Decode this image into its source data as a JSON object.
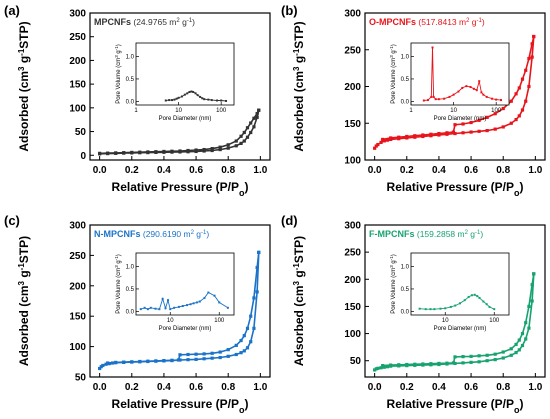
{
  "chart_data": [
    {
      "panel": "(a)",
      "type": "line",
      "sample": "MPCNFs",
      "surface_area": "(24.9765 m",
      "surface_unit_exp": "2",
      "surface_unit_tail": " g",
      "surface_unit_exp2": "-1",
      "surface_close": ")",
      "color": "#333333",
      "xlabel": "Relative Pressure (P/P",
      "xlabel_sub": "o",
      "xlabel_close": ")",
      "ylabel": "Adsorbed (cm",
      "ylabel_sup": "3",
      "ylabel_mid": " g",
      "ylabel_sup2": "-1",
      "ylabel_tail": "STP)",
      "xlim": [
        -0.06,
        1.06
      ],
      "ylim": [
        -10,
        300
      ],
      "xticks": [
        "0.0",
        "0.2",
        "0.4",
        "0.6",
        "0.8",
        "1.0"
      ],
      "yticks": [
        "0",
        "50",
        "100",
        "150",
        "200",
        "250",
        "300"
      ],
      "series": [
        {
          "x": [
            0.0,
            0.05,
            0.1,
            0.15,
            0.2,
            0.25,
            0.3,
            0.35,
            0.4,
            0.45,
            0.5,
            0.55,
            0.6,
            0.65,
            0.7,
            0.75,
            0.8,
            0.85,
            0.88,
            0.9,
            0.92,
            0.94,
            0.96,
            0.98,
            0.99
          ],
          "y": [
            3,
            3.5,
            4,
            4.5,
            5,
            5.3,
            5.6,
            6,
            6.3,
            6.6,
            7,
            7.4,
            8,
            9,
            10,
            12,
            15,
            20,
            25,
            30,
            38,
            48,
            60,
            80,
            95
          ]
        },
        {
          "x": [
            0.99,
            0.98,
            0.96,
            0.94,
            0.92,
            0.9,
            0.88,
            0.85,
            0.8,
            0.75,
            0.7,
            0.65,
            0.6,
            0.55,
            0.5,
            0.45,
            0.4,
            0.35,
            0.3,
            0.25,
            0.2,
            0.15,
            0.1,
            0.05,
            0.0
          ],
          "y": [
            95,
            88,
            78,
            68,
            58,
            48,
            40,
            30,
            22,
            17,
            14,
            12,
            11,
            10,
            9,
            8.5,
            8,
            7.5,
            7,
            6.5,
            6,
            5.5,
            5,
            4.5,
            4
          ]
        }
      ],
      "inset": {
        "xlabel": "Pore Diameter (nm)",
        "ylabel": "Pore Volume (cm",
        "ylabel_sup": "3",
        "ylabel_mid": " g",
        "ylabel_sup2": "-1",
        "ylabel_tail": ")",
        "xticks": [
          "1",
          "10",
          "100"
        ],
        "yticks": [
          "0.0",
          "0.5",
          "1.0"
        ],
        "xlog": true,
        "xlim": [
          1,
          200
        ],
        "ylim": [
          -0.08,
          1.3
        ],
        "x": [
          5,
          6,
          7,
          8,
          9,
          10,
          12,
          14,
          16,
          18,
          20,
          22,
          25,
          28,
          32,
          36,
          40,
          50,
          60,
          80,
          100,
          130
        ],
        "y": [
          0.02,
          0.03,
          0.03,
          0.04,
          0.06,
          0.08,
          0.11,
          0.15,
          0.18,
          0.21,
          0.22,
          0.21,
          0.18,
          0.14,
          0.1,
          0.07,
          0.05,
          0.04,
          0.03,
          0.02,
          0.02,
          0.01
        ]
      }
    },
    {
      "panel": "(b)",
      "type": "line",
      "sample": "O-MPCNFs",
      "surface_area": "(517.8413 m",
      "surface_unit_exp": "2",
      "surface_unit_tail": "g",
      "surface_unit_exp2": "-1",
      "surface_close": ")",
      "color": "#e8141b",
      "xlabel": "Relative Pressure (P/P",
      "xlabel_sub": "o",
      "xlabel_close": ")",
      "ylabel": "Adsorbed (cm",
      "ylabel_sup": "3",
      "ylabel_mid": " g",
      "ylabel_sup2": "-1",
      "ylabel_tail": "STP)",
      "xlim": [
        -0.06,
        1.06
      ],
      "ylim": [
        100,
        300
      ],
      "xticks": [
        "0.0",
        "0.2",
        "0.4",
        "0.6",
        "0.8",
        "1.0"
      ],
      "yticks": [
        "100",
        "150",
        "200",
        "250",
        "300"
      ],
      "series": [
        {
          "x": [
            0.0,
            0.01,
            0.02,
            0.04,
            0.06,
            0.08,
            0.1,
            0.15,
            0.2,
            0.25,
            0.3,
            0.35,
            0.4,
            0.45,
            0.5,
            0.55,
            0.6,
            0.65,
            0.7,
            0.75,
            0.8,
            0.85,
            0.88,
            0.9,
            0.92,
            0.94,
            0.96,
            0.98,
            0.99
          ],
          "y": [
            116,
            119,
            121,
            124,
            126,
            127,
            128,
            129,
            130,
            131,
            132,
            133,
            134,
            135,
            136,
            137,
            138,
            139,
            140,
            142,
            145,
            150,
            155,
            160,
            168,
            180,
            200,
            240,
            268
          ]
        },
        {
          "x": [
            0.99,
            0.98,
            0.96,
            0.94,
            0.92,
            0.9,
            0.88,
            0.85,
            0.8,
            0.75,
            0.7,
            0.65,
            0.6,
            0.55,
            0.5,
            0.49,
            0.45,
            0.4,
            0.35,
            0.3,
            0.25,
            0.2,
            0.15,
            0.1,
            0.05
          ],
          "y": [
            268,
            258,
            238,
            222,
            210,
            198,
            190,
            180,
            170,
            163,
            158,
            154,
            151,
            149,
            148,
            138,
            137,
            136,
            135,
            134,
            133,
            132,
            131,
            130,
            128
          ]
        }
      ],
      "inset": {
        "xlabel": "Pore Diameter (nm)",
        "ylabel": "Pore Volume (cm",
        "ylabel_sup": "3",
        "ylabel_mid": " g",
        "ylabel_sup2": "-1",
        "ylabel_tail": ")",
        "xticks": [
          "1",
          "10",
          "100"
        ],
        "yticks": [
          "0.0",
          "0.5",
          "1.0"
        ],
        "xlog": true,
        "xlim": [
          1,
          200
        ],
        "ylim": [
          -0.08,
          1.3
        ],
        "x": [
          2,
          2.5,
          3,
          3.2,
          3.4,
          3.8,
          4.5,
          6,
          8,
          10,
          13,
          16,
          20,
          25,
          30,
          35,
          40,
          45,
          50,
          60,
          80,
          100,
          130
        ],
        "y": [
          0.02,
          0.03,
          0.1,
          1.2,
          0.1,
          0.05,
          0.05,
          0.06,
          0.1,
          0.15,
          0.22,
          0.3,
          0.34,
          0.32,
          0.28,
          0.25,
          0.45,
          0.2,
          0.15,
          0.1,
          0.06,
          0.04,
          0.03
        ]
      }
    },
    {
      "panel": "(c)",
      "type": "line",
      "sample": "N-MPCNFs",
      "surface_area": "(290.6190 m",
      "surface_unit_exp": "2",
      "surface_unit_tail": " g",
      "surface_unit_exp2": "-1",
      "surface_close": ")",
      "color": "#1a73c8",
      "xlabel": "Relative Pressure (P/P",
      "xlabel_sub": "o",
      "xlabel_close": ")",
      "ylabel": "Adsorbed (cm",
      "ylabel_sup": "3",
      "ylabel_mid": " g",
      "ylabel_sup2": "-1",
      "ylabel_tail": "STP)",
      "xlim": [
        -0.06,
        1.06
      ],
      "ylim": [
        50,
        300
      ],
      "xticks": [
        "0.0",
        "0.2",
        "0.4",
        "0.6",
        "0.8",
        "1.0"
      ],
      "yticks": [
        "50",
        "100",
        "150",
        "200",
        "250",
        "300"
      ],
      "series": [
        {
          "x": [
            0.0,
            0.01,
            0.02,
            0.04,
            0.06,
            0.08,
            0.1,
            0.15,
            0.2,
            0.25,
            0.3,
            0.35,
            0.4,
            0.45,
            0.5,
            0.55,
            0.6,
            0.65,
            0.7,
            0.75,
            0.8,
            0.85,
            0.88,
            0.9,
            0.92,
            0.94,
            0.96,
            0.98,
            0.99
          ],
          "y": [
            64,
            67,
            69,
            71,
            72,
            73,
            73.5,
            74,
            74.5,
            75,
            75.5,
            76,
            76.5,
            77,
            78,
            78.5,
            79,
            80,
            81,
            82,
            84,
            87,
            90,
            93,
            98,
            108,
            130,
            190,
            255
          ]
        },
        {
          "x": [
            0.99,
            0.98,
            0.96,
            0.94,
            0.92,
            0.9,
            0.88,
            0.85,
            0.8,
            0.75,
            0.7,
            0.65,
            0.6,
            0.55,
            0.5,
            0.49,
            0.45,
            0.4,
            0.35,
            0.3,
            0.25,
            0.2,
            0.15,
            0.1,
            0.05
          ],
          "y": [
            255,
            230,
            180,
            150,
            130,
            118,
            110,
            102,
            95,
            91,
            89,
            88,
            87.5,
            87,
            86.5,
            78,
            77.5,
            77,
            76.5,
            76,
            75.5,
            75,
            74.5,
            74,
            73
          ]
        }
      ],
      "inset": {
        "xlabel": "Pore Diameter (nm)",
        "ylabel": "Pore Volume (cm",
        "ylabel_sup": "3",
        "ylabel_mid": " g",
        "ylabel_sup2": "-1",
        "ylabel_tail": ")",
        "xticks": [
          "10",
          "100"
        ],
        "yticks": [
          "0.0",
          "0.5",
          "1.0"
        ],
        "xlog": true,
        "xlim": [
          2,
          200
        ],
        "ylim": [
          -0.08,
          1.3
        ],
        "x": [
          2.5,
          3,
          3.5,
          4,
          5,
          6,
          7,
          8,
          9,
          10,
          12,
          15,
          18,
          22,
          26,
          30,
          35,
          40,
          50,
          60,
          80,
          100,
          150
        ],
        "y": [
          0.05,
          0.08,
          0.05,
          0.08,
          0.06,
          0.05,
          0.28,
          0.07,
          0.25,
          0.05,
          0.08,
          0.1,
          0.12,
          0.14,
          0.16,
          0.18,
          0.2,
          0.22,
          0.3,
          0.42,
          0.35,
          0.2,
          0.08
        ]
      }
    },
    {
      "panel": "(d)",
      "type": "line",
      "sample": "F-MPCNFs",
      "surface_area": "(159.2858 m",
      "surface_unit_exp": "2",
      "surface_unit_tail": " g",
      "surface_unit_exp2": "-1",
      "surface_close": ")",
      "color": "#17a36f",
      "xlabel": "Relative Pressure (P/P",
      "xlabel_sub": "o",
      "xlabel_close": ")",
      "ylabel": "Adsorbed (cm",
      "ylabel_sup": "3",
      "ylabel_mid": " g",
      "ylabel_sup2": "-1",
      "ylabel_tail": "STP)",
      "xlim": [
        -0.06,
        1.06
      ],
      "ylim": [
        20,
        300
      ],
      "xticks": [
        "0.0",
        "0.2",
        "0.4",
        "0.6",
        "0.8",
        "1.0"
      ],
      "yticks": [
        "50",
        "100",
        "150",
        "200",
        "250",
        "300"
      ],
      "series": [
        {
          "x": [
            0.0,
            0.01,
            0.02,
            0.04,
            0.06,
            0.08,
            0.1,
            0.15,
            0.2,
            0.25,
            0.3,
            0.35,
            0.4,
            0.45,
            0.5,
            0.55,
            0.6,
            0.65,
            0.7,
            0.75,
            0.8,
            0.85,
            0.88,
            0.9,
            0.92,
            0.94,
            0.96,
            0.98,
            0.99
          ],
          "y": [
            33,
            35,
            36,
            37,
            38,
            39,
            40,
            40.5,
            41,
            41.5,
            42,
            42.5,
            43,
            44,
            45,
            46,
            47,
            48,
            50,
            52,
            55,
            60,
            65,
            70,
            78,
            90,
            110,
            160,
            210
          ]
        },
        {
          "x": [
            0.99,
            0.98,
            0.96,
            0.94,
            0.92,
            0.9,
            0.88,
            0.85,
            0.8,
            0.75,
            0.7,
            0.65,
            0.6,
            0.55,
            0.5,
            0.49,
            0.45,
            0.4,
            0.35,
            0.3,
            0.25,
            0.2,
            0.15,
            0.1,
            0.05
          ],
          "y": [
            210,
            190,
            150,
            120,
            100,
            88,
            80,
            72,
            66,
            62,
            60,
            59,
            58,
            57.5,
            57,
            46,
            45.5,
            45,
            44.5,
            44,
            43.5,
            43,
            42.5,
            42,
            41
          ]
        }
      ],
      "inset": {
        "xlabel": "Pore Diameter (nm)",
        "ylabel": "Pore Volume (cm",
        "ylabel_sup": "3",
        "ylabel_mid": " g",
        "ylabel_sup2": "-1",
        "ylabel_tail": ")",
        "xticks": [
          "10",
          "100"
        ],
        "yticks": [
          "0.0",
          "0.5",
          "1.0"
        ],
        "xlog": true,
        "xlim": [
          2,
          200
        ],
        "ylim": [
          -0.08,
          1.3
        ],
        "x": [
          3,
          4,
          5,
          6,
          8,
          10,
          13,
          16,
          20,
          25,
          30,
          35,
          40,
          45,
          50,
          60,
          70,
          80,
          100
        ],
        "y": [
          0.06,
          0.05,
          0.05,
          0.05,
          0.06,
          0.07,
          0.1,
          0.13,
          0.18,
          0.25,
          0.32,
          0.36,
          0.37,
          0.34,
          0.3,
          0.22,
          0.16,
          0.1,
          0.05
        ]
      }
    }
  ]
}
